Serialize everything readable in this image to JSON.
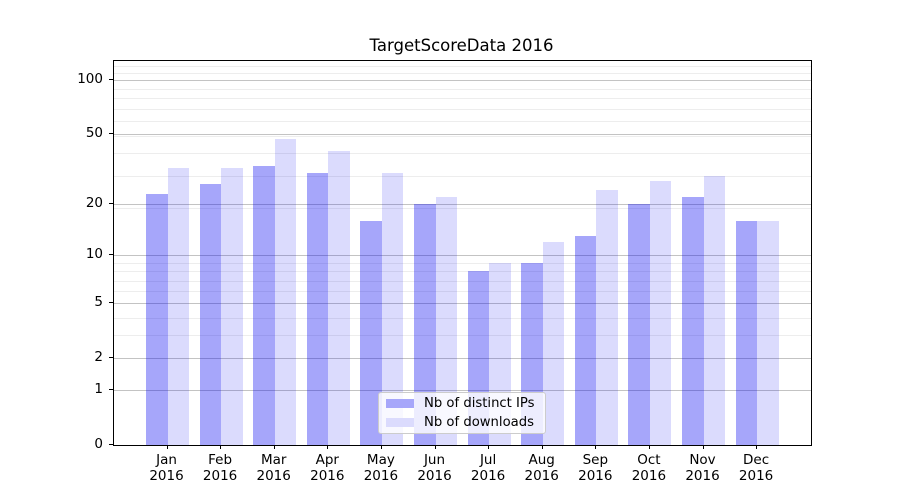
{
  "title": "TargetScoreData 2016",
  "chart_data": {
    "type": "bar",
    "title": "TargetScoreData 2016",
    "categories": [
      "Jan 2016",
      "Feb 2016",
      "Mar 2016",
      "Apr 2016",
      "May 2016",
      "Jun 2016",
      "Jul 2016",
      "Aug 2016",
      "Sep 2016",
      "Oct 2016",
      "Nov 2016",
      "Dec 2016"
    ],
    "series": [
      {
        "name": "Nb of distinct IPs",
        "color": "rgba(0,0,240,0.35)",
        "solid_color": "#a6a6fa",
        "values": [
          23,
          26,
          33,
          30,
          16,
          20,
          8,
          9,
          13,
          20,
          22,
          16
        ]
      },
      {
        "name": "Nb of downloads",
        "color": "rgba(0,0,240,0.14)",
        "solid_color": "#dbdbfd",
        "values": [
          32,
          32,
          47,
          40,
          30,
          22,
          9,
          12,
          24,
          27,
          29,
          16
        ]
      }
    ],
    "y_axis": {
      "scale": "log10(1+v)",
      "tick_values": [
        100,
        50,
        20,
        10,
        5,
        2,
        1,
        0
      ],
      "top_value": 127.3,
      "minor_gridline_values": [
        3,
        4,
        6,
        7,
        8,
        9,
        19,
        29,
        39,
        49,
        59,
        69,
        79,
        89,
        109,
        119
      ]
    },
    "x_axis": {
      "tick_label_lines": 2
    },
    "legend_position": "lower center",
    "grid": true,
    "ylim": [
      0,
      127.3
    ],
    "xlabel": "",
    "ylabel": ""
  },
  "legend": {
    "items": [
      {
        "label": "Nb of distinct IPs"
      },
      {
        "label": "Nb of downloads"
      }
    ]
  },
  "colors": {
    "background": "#ffffff",
    "spine": "#000000",
    "major_grid": "#c3c3c3",
    "minor_grid": "#ededed",
    "bar_dark": "rgba(0,0,240,0.35)",
    "bar_light": "rgba(0,0,240,0.14)"
  }
}
